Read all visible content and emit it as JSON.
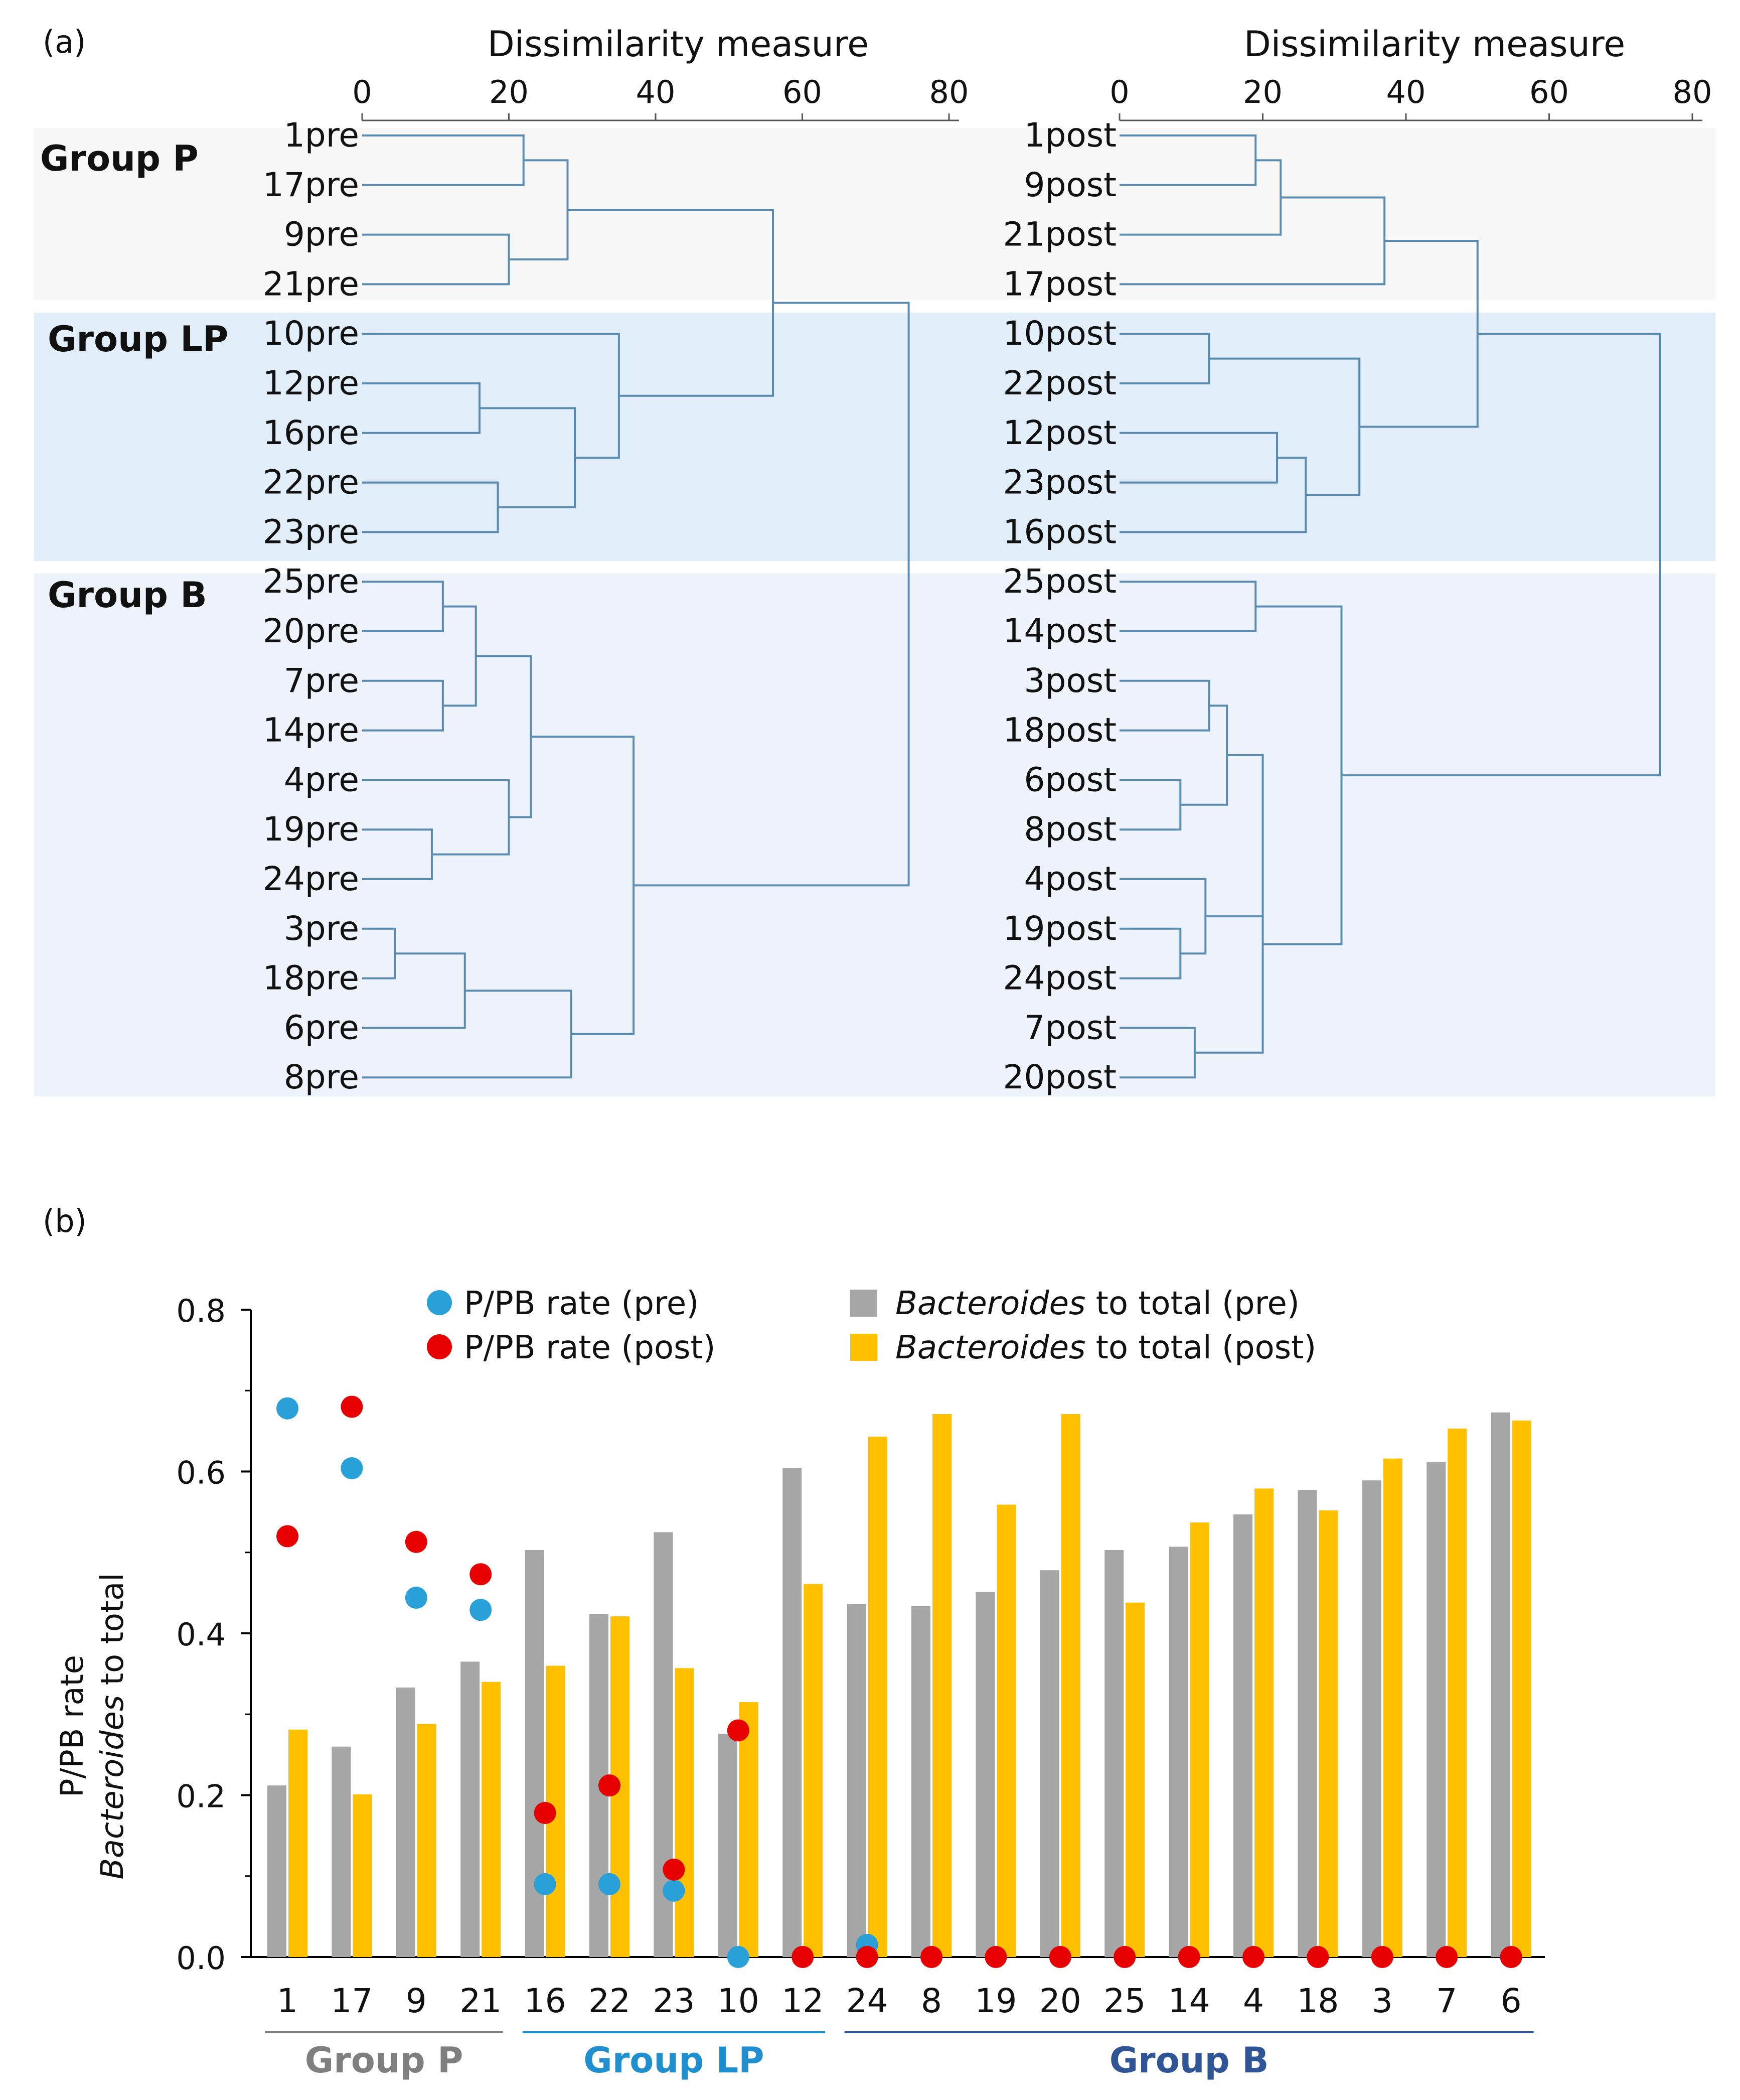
{
  "panel_a": {
    "label": "(a)",
    "colors": {
      "group_p_band": "#f7f7f7",
      "group_lp_band": "#e1eef9",
      "group_b_band": "#eef3fb",
      "tree": "#5a8bb0"
    },
    "axis": {
      "title": "Dissimilarity measure",
      "ticks": [
        "0",
        "20",
        "40",
        "60",
        "80"
      ]
    },
    "groups": [
      {
        "name": "Group P",
        "key": "P"
      },
      {
        "name": "Group LP",
        "key": "LP"
      },
      {
        "name": "Group B",
        "key": "B"
      }
    ],
    "pre": {
      "leaves": [
        "1pre",
        "17pre",
        "9pre",
        "21pre",
        "10pre",
        "12pre",
        "16pre",
        "22pre",
        "23pre",
        "25pre",
        "20pre",
        "7pre",
        "14pre",
        "4pre",
        "19pre",
        "24pre",
        "3pre",
        "18pre",
        "6pre",
        "8pre"
      ],
      "merges": [
        {
          "a": "1pre",
          "b": "17pre",
          "h": 22
        },
        {
          "a": "9pre",
          "b": "21pre",
          "h": 20
        },
        {
          "a": "m0",
          "b": "m1",
          "h": 28
        },
        {
          "a": "12pre",
          "b": "16pre",
          "h": 16
        },
        {
          "a": "22pre",
          "b": "23pre",
          "h": 18.5
        },
        {
          "a": "m3",
          "b": "m4",
          "h": 29
        },
        {
          "a": "10pre",
          "b": "m5",
          "h": 35
        },
        {
          "a": "m2",
          "b": "m6",
          "h": 56
        },
        {
          "a": "25pre",
          "b": "20pre",
          "h": 11
        },
        {
          "a": "7pre",
          "b": "14pre",
          "h": 11
        },
        {
          "a": "m8",
          "b": "m9",
          "h": 15.5
        },
        {
          "a": "19pre",
          "b": "24pre",
          "h": 9.5
        },
        {
          "a": "4pre",
          "b": "m11",
          "h": 20
        },
        {
          "a": "m10",
          "b": "m12",
          "h": 23
        },
        {
          "a": "3pre",
          "b": "18pre",
          "h": 4.5
        },
        {
          "a": "m14",
          "b": "6pre",
          "h": 14
        },
        {
          "a": "m15",
          "b": "8pre",
          "h": 28.5
        },
        {
          "a": "m13",
          "b": "m16",
          "h": 37
        },
        {
          "a": "m7",
          "b": "m17",
          "h": 74.5
        }
      ]
    },
    "post": {
      "leaves": [
        "1post",
        "9post",
        "21post",
        "17post",
        "10post",
        "22post",
        "12post",
        "23post",
        "16post",
        "25post",
        "14post",
        "3post",
        "18post",
        "6post",
        "8post",
        "4post",
        "19post",
        "24post",
        "7post",
        "20post"
      ],
      "merges": [
        {
          "a": "1post",
          "b": "9post",
          "h": 19
        },
        {
          "a": "m0",
          "b": "21post",
          "h": 22.5
        },
        {
          "a": "m1",
          "b": "17post",
          "h": 37
        },
        {
          "a": "10post",
          "b": "22post",
          "h": 12.5
        },
        {
          "a": "12post",
          "b": "23post",
          "h": 22
        },
        {
          "a": "m4",
          "b": "16post",
          "h": 26
        },
        {
          "a": "m3",
          "b": "m5",
          "h": 33.5
        },
        {
          "a": "m2",
          "b": "m6",
          "h": 50
        },
        {
          "a": "25post",
          "b": "14post",
          "h": 19
        },
        {
          "a": "3post",
          "b": "18post",
          "h": 12.5
        },
        {
          "a": "6post",
          "b": "8post",
          "h": 8.5
        },
        {
          "a": "m9",
          "b": "m10",
          "h": 15
        },
        {
          "a": "19post",
          "b": "24post",
          "h": 8.5
        },
        {
          "a": "4post",
          "b": "m12",
          "h": 12
        },
        {
          "a": "m11",
          "b": "m13",
          "h": 20
        },
        {
          "a": "7post",
          "b": "20post",
          "h": 10.5
        },
        {
          "a": "m14",
          "b": "m15",
          "h": 20
        },
        {
          "a": "m8",
          "b": "m16",
          "h": 31
        },
        {
          "a": "m7",
          "b": "m17",
          "h": 75.5
        }
      ]
    }
  },
  "panel_b": {
    "label": "(b)",
    "chart_data": {
      "type": "bar",
      "title": "",
      "ylabel": "P/PB  rate",
      "ylabel2_italic": "Bacteroides",
      "ylabel2_rest": " to total",
      "ylim": [
        0,
        0.8
      ],
      "yticks": [
        "0.0",
        "0.2",
        "0.4",
        "0.6",
        "0.8"
      ],
      "categories": [
        "1",
        "17",
        "9",
        "21",
        "16",
        "22",
        "23",
        "10",
        "12",
        "24",
        "8",
        "19",
        "20",
        "25",
        "14",
        "4",
        "18",
        "3",
        "7",
        "6"
      ],
      "series": [
        {
          "name": "Bacteroides to total (pre)",
          "kind": "bar",
          "color": "#a6a6a6",
          "values": [
            0.212,
            0.26,
            0.333,
            0.365,
            0.503,
            0.424,
            0.525,
            0.276,
            0.604,
            0.436,
            0.434,
            0.451,
            0.478,
            0.503,
            0.507,
            0.547,
            0.577,
            0.589,
            0.612,
            0.673
          ]
        },
        {
          "name": "Bacteroides to total (post)",
          "kind": "bar",
          "color": "#ffc000",
          "values": [
            0.281,
            0.201,
            0.288,
            0.34,
            0.36,
            0.421,
            0.357,
            0.315,
            0.461,
            0.643,
            0.671,
            0.559,
            0.671,
            0.438,
            0.537,
            0.579,
            0.552,
            0.616,
            0.653,
            0.663
          ]
        },
        {
          "name": "P/PB  rate (pre)",
          "kind": "dot",
          "color": "#2aa0d8",
          "values": [
            0.678,
            0.604,
            0.444,
            0.429,
            0.09,
            0.09,
            0.082,
            0.0,
            null,
            0.015,
            null,
            null,
            null,
            null,
            null,
            null,
            null,
            null,
            null,
            null
          ]
        },
        {
          "name": "P/PB  rate (post)",
          "kind": "dot",
          "color": "#e60000",
          "values": [
            0.52,
            0.68,
            0.513,
            0.473,
            0.178,
            0.212,
            0.108,
            0.28,
            0.0,
            0.0,
            0.0,
            0.0,
            0.0,
            0.0,
            0.0,
            0.0,
            0.0,
            0.0,
            0.0,
            0.0
          ]
        }
      ],
      "legend": {
        "dot_pre": "P/PB  rate (pre)",
        "dot_post": "P/PB  rate (post)",
        "bar_pre_italic": "Bacteroides",
        "bar_pre_rest": " to total (pre)",
        "bar_post_italic": "Bacteroides",
        "bar_post_rest": " to total (post)"
      },
      "groups": [
        {
          "name": "Group P",
          "first": "1",
          "last": "21",
          "color": "#7f7f7f"
        },
        {
          "name": "Group LP",
          "first": "16",
          "last": "12",
          "color": "#1f8fd0"
        },
        {
          "name": "Group B",
          "first": "24",
          "last": "6",
          "color": "#2f5597"
        }
      ]
    }
  }
}
